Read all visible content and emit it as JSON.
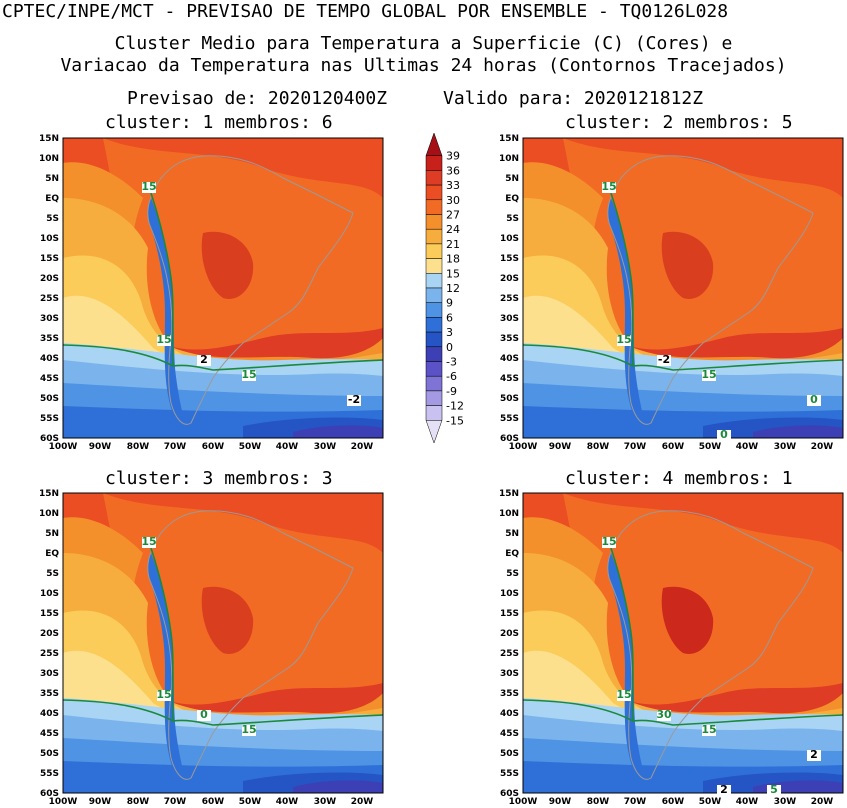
{
  "header": {
    "main_title": "CPTEC/INPE/MCT - PREVISAO DE TEMPO GLOBAL POR ENSEMBLE - TQ0126L028",
    "line1": "Cluster Medio para Temperatura a Superficie (C) (Cores) e",
    "line2": "Variacao da Temperatura nas Ultimas 24 horas (Contornos Tracejados)",
    "previsao": "Previsao de: 2020120400Z",
    "valido": "Valido para: 2020121812Z"
  },
  "map_axes": {
    "lat_labels": [
      "15N",
      "10N",
      "5N",
      "EQ",
      "5S",
      "10S",
      "15S",
      "20S",
      "25S",
      "30S",
      "35S",
      "40S",
      "45S",
      "50S",
      "55S",
      "60S"
    ],
    "lon_labels": [
      "100W",
      "90W",
      "80W",
      "70W",
      "60W",
      "50W",
      "40W",
      "30W",
      "20W"
    ]
  },
  "panels": [
    {
      "title": "cluster: 1   membros: 6",
      "labels": [
        "15",
        "15",
        "15",
        "2",
        "-2"
      ]
    },
    {
      "title": "cluster: 2   membros: 5",
      "labels": [
        "15",
        "15",
        "15",
        "-2",
        "0",
        "0"
      ]
    },
    {
      "title": "cluster: 3   membros: 3",
      "labels": [
        "15",
        "15",
        "15",
        "0"
      ]
    },
    {
      "title": "cluster: 4   membros: 1",
      "labels": [
        "15",
        "15",
        "15",
        "30",
        "2",
        "2",
        "5"
      ]
    }
  ],
  "colorbar": {
    "labels": [
      "39",
      "36",
      "33",
      "30",
      "27",
      "24",
      "21",
      "18",
      "15",
      "12",
      "9",
      "6",
      "3",
      "0",
      "-3",
      "-6",
      "-9",
      "-12",
      "-15"
    ],
    "colors": [
      "#a50f15",
      "#c8211b",
      "#de3c24",
      "#ec4e23",
      "#f26b25",
      "#f4902b",
      "#f7ad3e",
      "#fbcc5a",
      "#fde08e",
      "#a9d4f3",
      "#7bb4ec",
      "#4f93e4",
      "#2f70d8",
      "#2554c5",
      "#3d3fb5",
      "#5c52c7",
      "#7f73d6",
      "#a39ae3",
      "#c9c1ef",
      "#e6e0f7"
    ]
  }
}
